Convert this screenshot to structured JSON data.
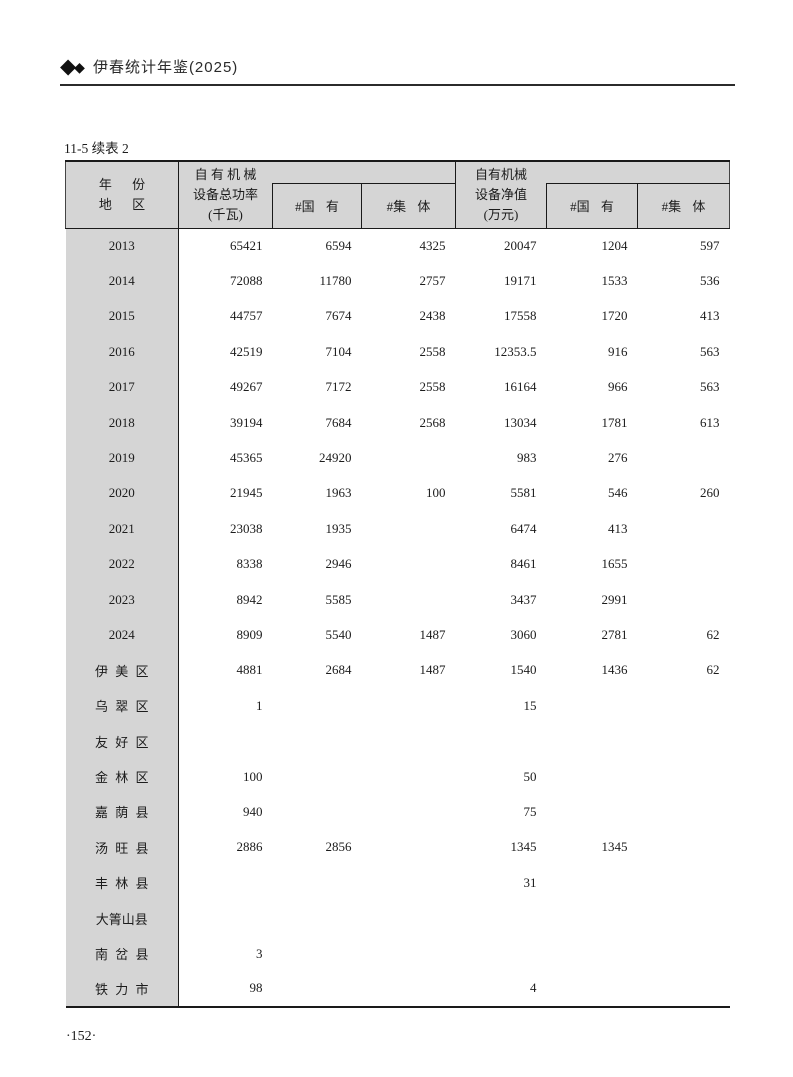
{
  "page": {
    "header_title": "伊春统计年鉴(2025)",
    "caption": "11-5 续表 2",
    "page_number": "·152·"
  },
  "icons": {
    "diamond_large": "◆",
    "diamond_small": "◆"
  },
  "table": {
    "header": {
      "year_line": "年 份",
      "region_line": "地 区",
      "power_line1": "自 有 机 械",
      "power_line2": "设备总功率",
      "power_line3": "(千瓦)",
      "net_line1": "自有机械",
      "net_line2": "设备净值",
      "net_line3": "(万元)",
      "state_owned_left": "#国 有",
      "collective_left": "#集 体",
      "state_owned_right": "#国 有",
      "collective_right": "#集 体"
    },
    "rows": [
      {
        "label": "2013",
        "values": [
          "65421",
          "6594",
          "4325",
          "20047",
          "1204",
          "597"
        ]
      },
      {
        "label": "2014",
        "values": [
          "72088",
          "11780",
          "2757",
          "19171",
          "1533",
          "536"
        ]
      },
      {
        "label": "2015",
        "values": [
          "44757",
          "7674",
          "2438",
          "17558",
          "1720",
          "413"
        ]
      },
      {
        "label": "2016",
        "values": [
          "42519",
          "7104",
          "2558",
          "12353.5",
          "916",
          "563"
        ]
      },
      {
        "label": "2017",
        "values": [
          "49267",
          "7172",
          "2558",
          "16164",
          "966",
          "563"
        ]
      },
      {
        "label": "2018",
        "values": [
          "39194",
          "7684",
          "2568",
          "13034",
          "1781",
          "613"
        ]
      },
      {
        "label": "2019",
        "values": [
          "45365",
          "24920",
          "",
          "983",
          "276",
          ""
        ]
      },
      {
        "label": "2020",
        "values": [
          "21945",
          "1963",
          "100",
          "5581",
          "546",
          "260"
        ]
      },
      {
        "label": "2021",
        "values": [
          "23038",
          "1935",
          "",
          "6474",
          "413",
          ""
        ]
      },
      {
        "label": "2022",
        "values": [
          "8338",
          "2946",
          "",
          "8461",
          "1655",
          ""
        ]
      },
      {
        "label": "2023",
        "values": [
          "8942",
          "5585",
          "",
          "3437",
          "2991",
          ""
        ]
      },
      {
        "label": "2024",
        "values": [
          "8909",
          "5540",
          "1487",
          "3060",
          "2781",
          "62"
        ]
      },
      {
        "label": "伊 美 区",
        "values": [
          "4881",
          "2684",
          "1487",
          "1540",
          "1436",
          "62"
        ]
      },
      {
        "label": "乌 翠 区",
        "values": [
          "1",
          "",
          "",
          "15",
          "",
          ""
        ]
      },
      {
        "label": "友 好 区",
        "values": [
          "",
          "",
          "",
          "",
          "",
          ""
        ]
      },
      {
        "label": "金 林 区",
        "values": [
          "100",
          "",
          "",
          "50",
          "",
          ""
        ]
      },
      {
        "label": "嘉 荫 县",
        "values": [
          "940",
          "",
          "",
          "75",
          "",
          ""
        ]
      },
      {
        "label": "汤 旺 县",
        "values": [
          "2886",
          "2856",
          "",
          "1345",
          "1345",
          ""
        ]
      },
      {
        "label": "丰 林 县",
        "values": [
          "",
          "",
          "",
          "31",
          "",
          ""
        ]
      },
      {
        "label": "大箐山县",
        "values": [
          "",
          "",
          "",
          "",
          "",
          ""
        ]
      },
      {
        "label": "南 岔 县",
        "values": [
          "3",
          "",
          "",
          "",
          "",
          ""
        ]
      },
      {
        "label": "铁 力 市",
        "values": [
          "98",
          "",
          "",
          "4",
          "",
          ""
        ]
      }
    ]
  }
}
